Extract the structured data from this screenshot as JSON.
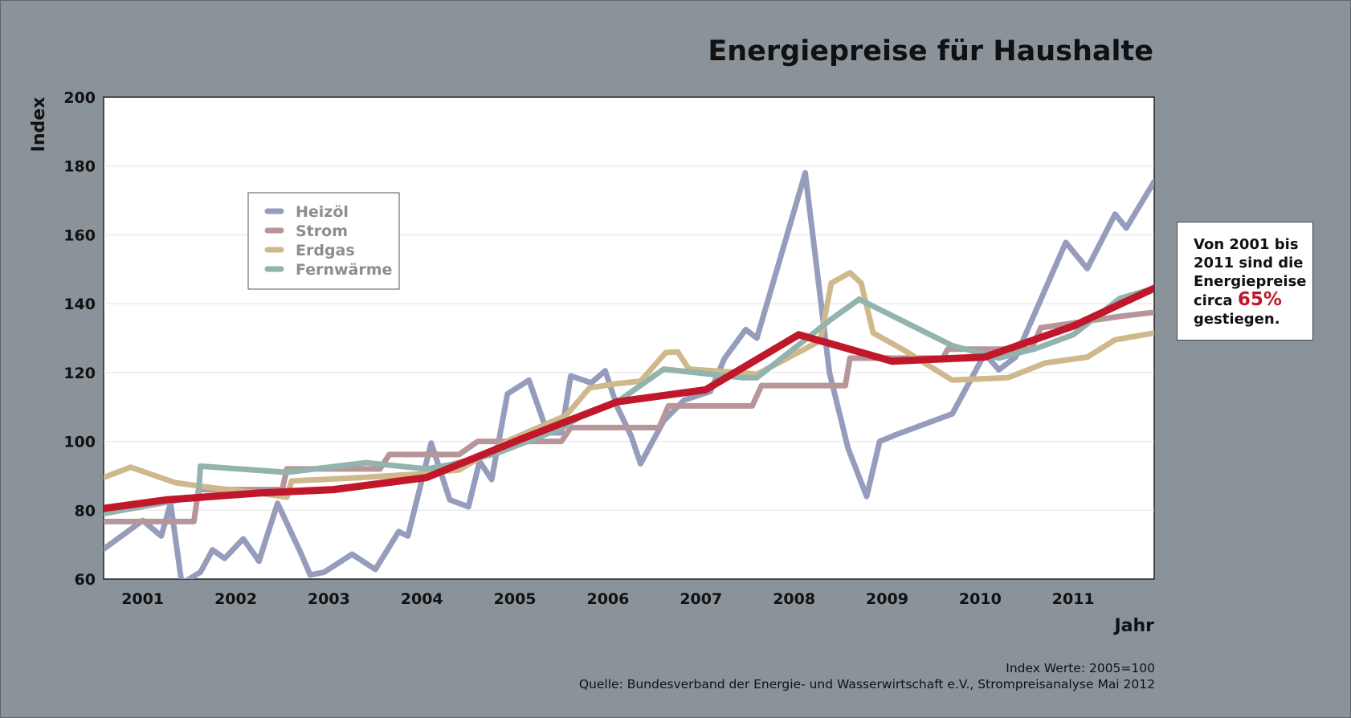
{
  "title": "Energiepreise für Haushalte",
  "callout": {
    "line1": "Von 2001 bis",
    "line2": "2011 sind die",
    "line3": "Energiepreise",
    "line4_prefix": "circa",
    "highlight": "65%",
    "line5": "gestiegen."
  },
  "footer": {
    "line1": "Index Werte: 2005=100",
    "line2": "Quelle: Bundesverband der Energie- und Wasserwirtschaft e.V., Strompreisanalyse Mai 2012"
  },
  "colors": {
    "heizoel": "#959cbc",
    "strom": "#b89599",
    "erdgas": "#cfb98c",
    "fernwaerme": "#92b3ae",
    "trend": "#c0172a",
    "background": "#8a939a"
  },
  "chart_data": {
    "type": "line",
    "title": "Energiepreise für Haushalte",
    "xlabel": "Jahr",
    "ylabel": "Index",
    "xlim": [
      2000.58,
      2011.87
    ],
    "ylim": [
      60,
      200
    ],
    "yticks": [
      60,
      80,
      100,
      120,
      140,
      160,
      180,
      200
    ],
    "xticks": [
      2001,
      2002,
      2003,
      2004,
      2005,
      2006,
      2007,
      2008,
      2009,
      2010,
      2011
    ],
    "xtick_labels": [
      "2001",
      "2002",
      "2003",
      "2004",
      "2005",
      "2006",
      "2007",
      "2008",
      "2009",
      "2010",
      "2011"
    ],
    "grid": "horizontal",
    "legend_position": "upper-left",
    "series": [
      {
        "name": "Heizöl",
        "color": "#959cbc",
        "x": [
          2000.58,
          2001.0,
          2001.2,
          2001.3,
          2001.42,
          2001.5,
          2001.62,
          2001.75,
          2001.88,
          2002.08,
          2002.25,
          2002.33,
          2002.45,
          2002.7,
          2002.8,
          2002.95,
          2003.25,
          2003.5,
          2003.75,
          2003.85,
          2004.1,
          2004.3,
          2004.5,
          2004.62,
          2004.75,
          2004.92,
          2005.15,
          2005.35,
          2005.5,
          2005.6,
          2005.82,
          2005.97,
          2006.1,
          2006.25,
          2006.35,
          2006.6,
          2006.82,
          2007.1,
          2007.25,
          2007.48,
          2007.6,
          2008.12,
          2008.38,
          2008.58,
          2008.78,
          2008.92,
          2009.1,
          2009.7,
          2010.05,
          2010.2,
          2010.38,
          2010.92,
          2011.15,
          2011.45,
          2011.57,
          2011.87
        ],
        "y": [
          68.7,
          77,
          72.5,
          82,
          58.7,
          60,
          62,
          68.5,
          66,
          71.7,
          65.2,
          72,
          82,
          67.5,
          61.2,
          62,
          67.2,
          62.8,
          73.8,
          72.5,
          99.5,
          83,
          81,
          94.2,
          88.9,
          113.8,
          117.8,
          102.5,
          102.5,
          119,
          117,
          120.5,
          110,
          101.5,
          93.5,
          106,
          112,
          114.5,
          124,
          132.5,
          130,
          178,
          120,
          98,
          84,
          100,
          102,
          108,
          125.5,
          120.8,
          124.5,
          157.8,
          150.2,
          166,
          162,
          175.5
        ]
      },
      {
        "name": "Strom",
        "color": "#b89599",
        "x": [
          2000.58,
          2001.55,
          2001.6,
          2002.5,
          2002.55,
          2003.55,
          2003.65,
          2004.4,
          2004.6,
          2005.5,
          2005.6,
          2006.55,
          2006.65,
          2007.55,
          2007.65,
          2008.55,
          2008.6,
          2009.6,
          2009.65,
          2010.55,
          2010.65,
          2011.5,
          2011.87
        ],
        "y": [
          76.7,
          76.7,
          86,
          86,
          92,
          92,
          96.2,
          96.2,
          100,
          100,
          104,
          104,
          110.3,
          110.3,
          116.2,
          116.2,
          124.2,
          124.2,
          126.8,
          126.8,
          133,
          136.3,
          137.5
        ]
      },
      {
        "name": "Erdgas",
        "color": "#cfb98c",
        "x": [
          2000.58,
          2000.87,
          2001.35,
          2001.75,
          2002.25,
          2002.55,
          2002.6,
          2003.35,
          2003.95,
          2004.4,
          2004.95,
          2005.55,
          2005.8,
          2006.1,
          2006.35,
          2006.62,
          2006.75,
          2006.87,
          2007.4,
          2007.6,
          2008.28,
          2008.4,
          2008.6,
          2008.72,
          2008.85,
          2009.15,
          2009.7,
          2010.3,
          2010.7,
          2011.15,
          2011.45,
          2011.87
        ],
        "y": [
          89.5,
          92.5,
          88,
          86.5,
          85,
          83.8,
          88.5,
          89.5,
          90.5,
          91.7,
          100.5,
          107.5,
          115.5,
          116.8,
          117.5,
          125.8,
          126,
          121,
          120,
          119.5,
          129.2,
          146,
          149,
          146,
          131.5,
          127,
          117.8,
          118.5,
          122.8,
          124.5,
          129.5,
          131.5
        ]
      },
      {
        "name": "Fernwärme",
        "color": "#92b3ae",
        "x": [
          2000.58,
          2001.6,
          2001.62,
          2002.55,
          2003.4,
          2004.05,
          2004.3,
          2004.8,
          2005.5,
          2005.75,
          2006.1,
          2006.6,
          2007.45,
          2007.6,
          2008.4,
          2008.7,
          2009.7,
          2010.2,
          2010.6,
          2011.0,
          2011.5,
          2011.87
        ],
        "y": [
          79,
          84,
          92.8,
          91,
          93.8,
          92,
          93.2,
          96.5,
          103.8,
          108,
          111.5,
          121,
          118.5,
          118.5,
          135.5,
          141.3,
          127.8,
          124.2,
          127,
          131,
          141.5,
          144.5
        ]
      },
      {
        "x": [
          2000.58,
          2001.25,
          2002.25,
          2003.05,
          2004.05,
          2005.05,
          2006.1,
          2007.05,
          2008.05,
          2009.05,
          2010.05,
          2011.0,
          2011.87
        ],
        "y": [
          80.5,
          83,
          85,
          86,
          89.5,
          100.5,
          111.5,
          115,
          131,
          123.3,
          124.5,
          133.5,
          144.5
        ],
        "color": "#c0172a",
        "role": "trend"
      }
    ]
  }
}
